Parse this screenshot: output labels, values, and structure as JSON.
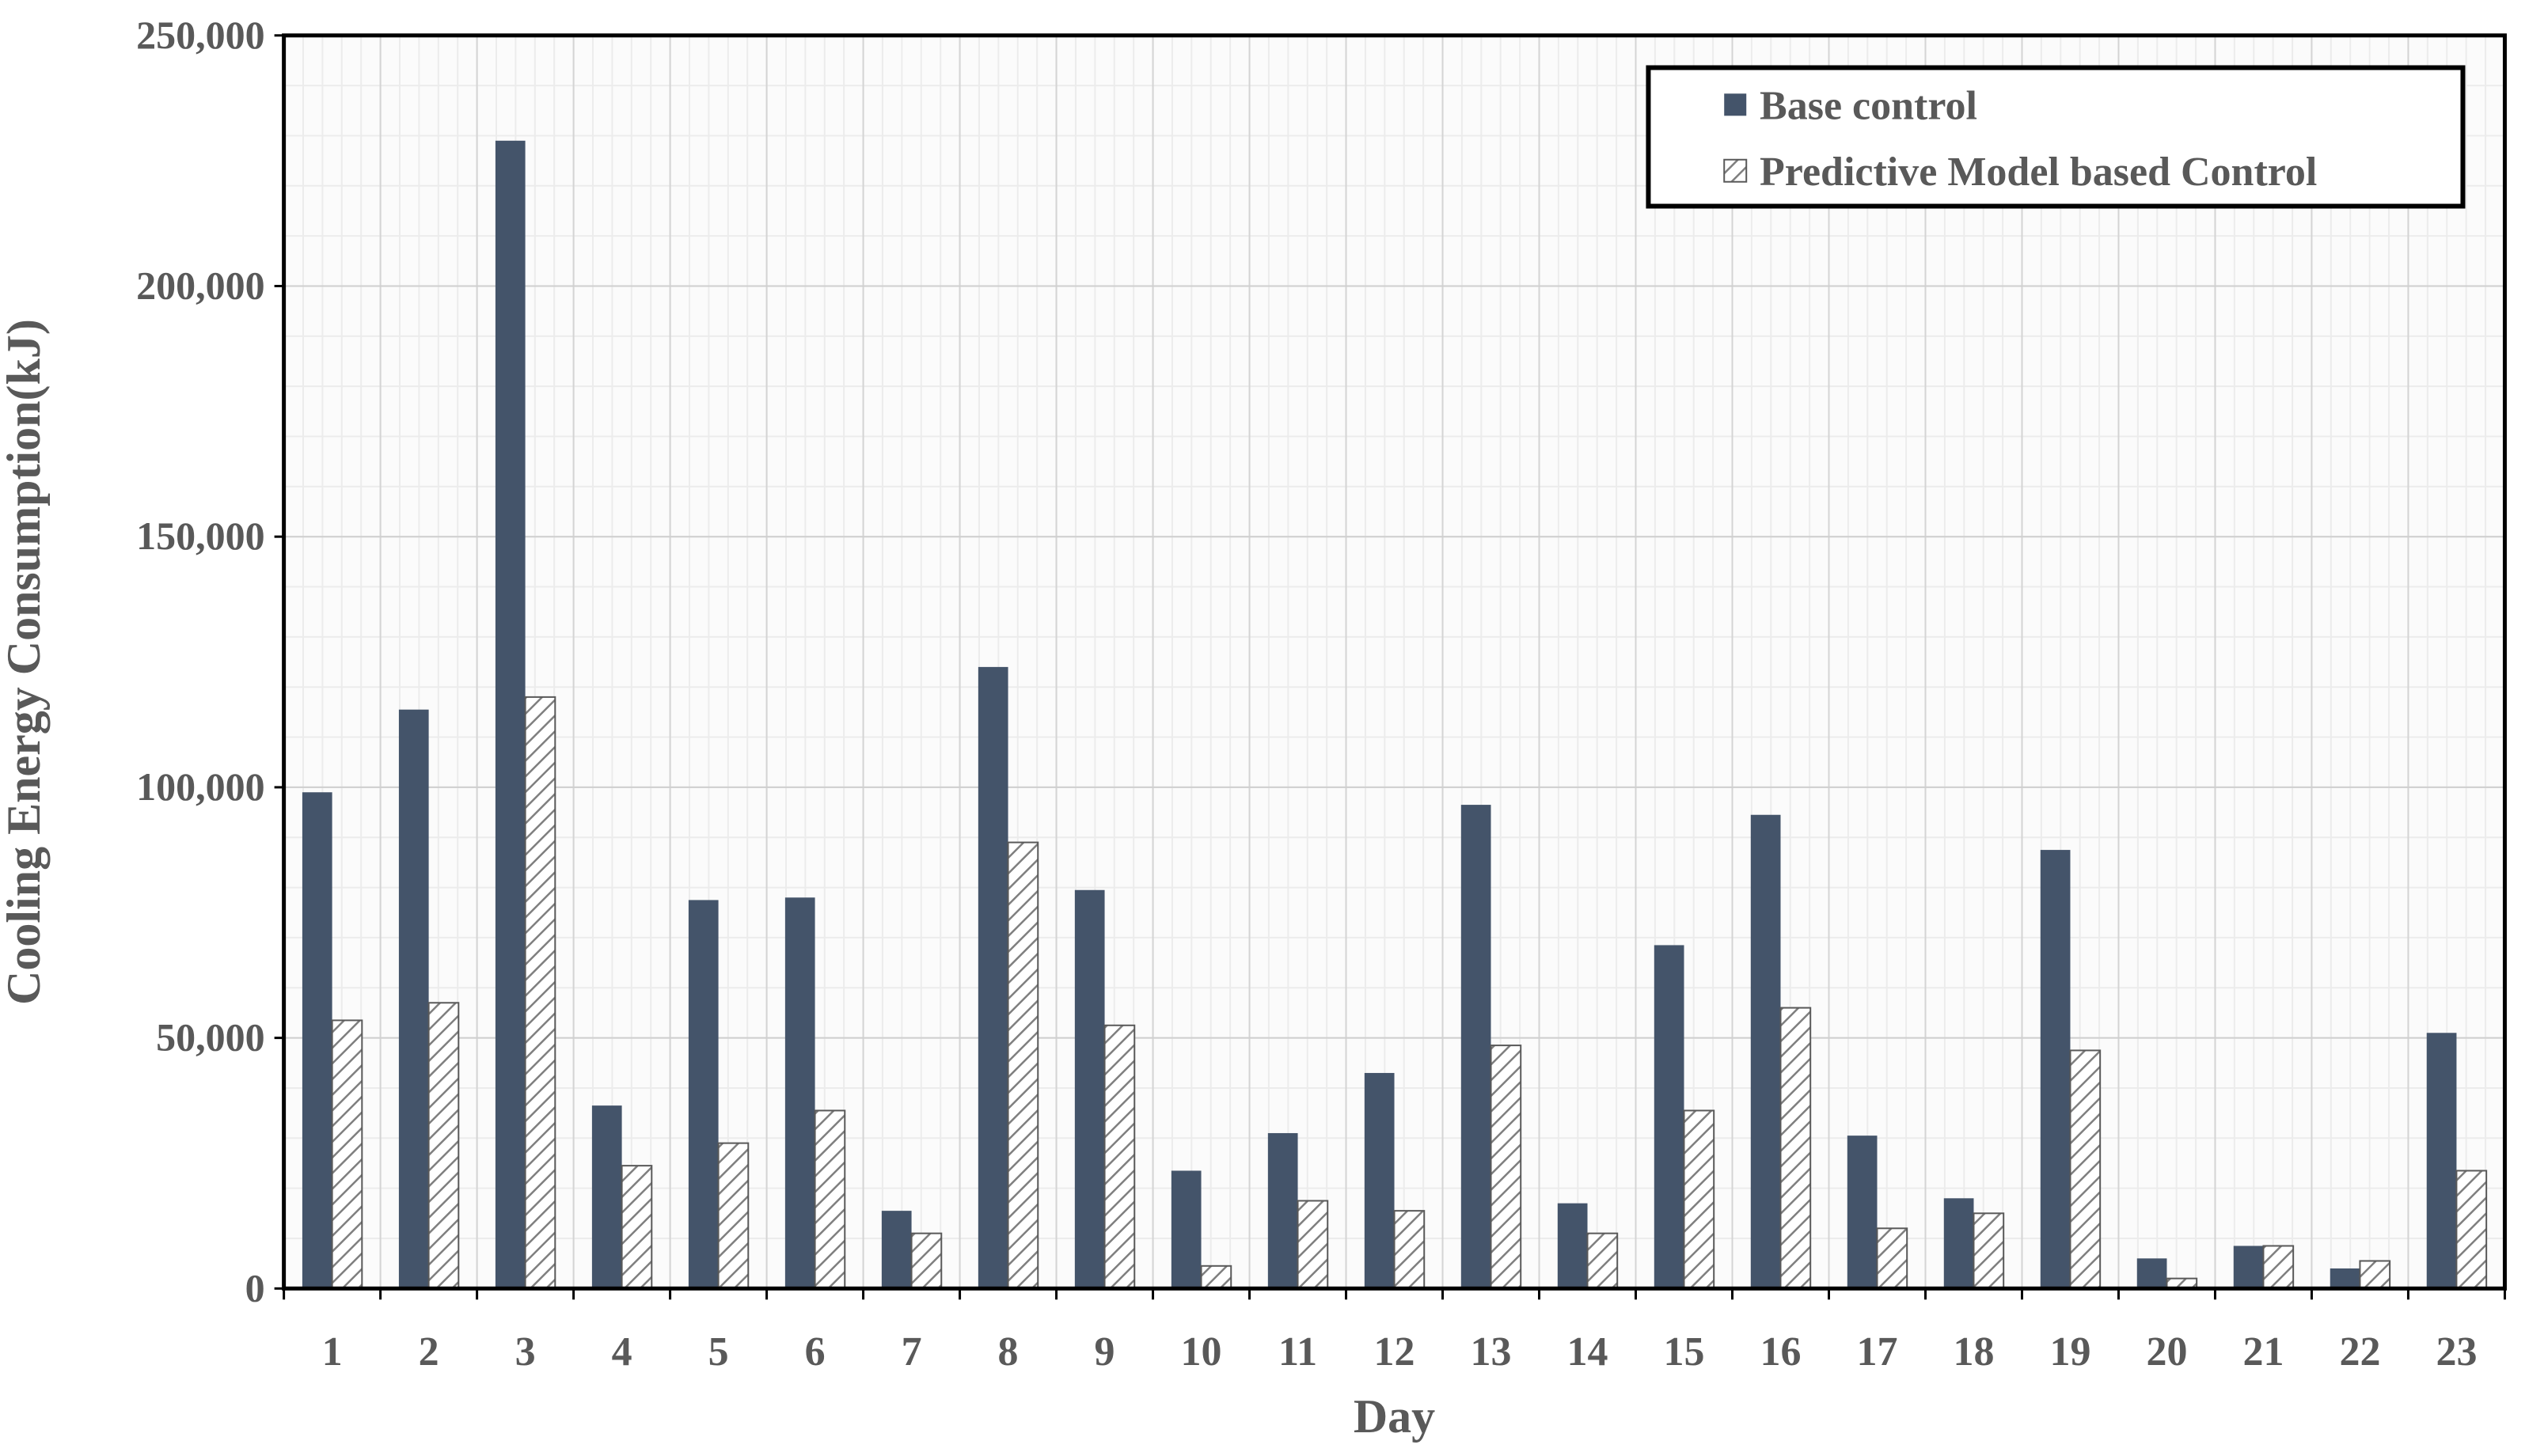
{
  "chart_data": {
    "type": "bar",
    "xlabel": "Day",
    "ylabel": "Cooling Energy Consumption(kJ)",
    "ylim": [
      0,
      250000
    ],
    "yticks": [
      0,
      50000,
      100000,
      150000,
      200000,
      250000
    ],
    "ytick_labels": [
      "0",
      "50,000",
      "100,000",
      "150,000",
      "200,000",
      "250,000"
    ],
    "grid": true,
    "legend_position": "top-right",
    "categories": [
      "1",
      "2",
      "3",
      "4",
      "5",
      "6",
      "7",
      "8",
      "9",
      "10",
      "11",
      "12",
      "13",
      "14",
      "15",
      "16",
      "17",
      "18",
      "19",
      "20",
      "21",
      "22",
      "23"
    ],
    "series": [
      {
        "name": "Base control",
        "style": "solid",
        "color": "#44546a",
        "values": [
          99000,
          115500,
          229000,
          36500,
          77500,
          78000,
          15500,
          124000,
          79500,
          23500,
          31000,
          43000,
          96500,
          17000,
          68500,
          94500,
          30500,
          18000,
          87500,
          6000,
          8500,
          4000,
          51000
        ]
      },
      {
        "name": "Predictive Model based Control",
        "style": "hatched",
        "color": "#ffffff",
        "values": [
          53500,
          57000,
          118000,
          24500,
          29000,
          35500,
          11000,
          89000,
          52500,
          4500,
          17500,
          15500,
          48500,
          11000,
          35500,
          56000,
          12000,
          15000,
          47500,
          2000,
          8500,
          5500,
          23500
        ]
      }
    ]
  }
}
